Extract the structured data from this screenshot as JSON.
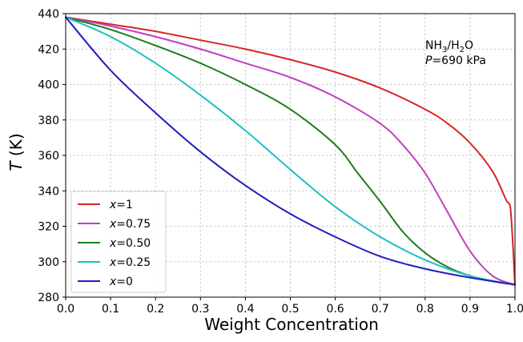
{
  "chart_data": {
    "type": "line",
    "xlabel": "Weight Concentration",
    "ylabel_var": "T",
    "ylabel_unit": " (K)",
    "xlim": [
      0.0,
      1.0
    ],
    "ylim": [
      280,
      440
    ],
    "x_ticks": [
      0.0,
      0.1,
      0.2,
      0.3,
      0.4,
      0.5,
      0.6,
      0.7,
      0.8,
      0.9,
      1.0
    ],
    "x_tick_labels": [
      "0.0",
      "0.1",
      "0.2",
      "0.3",
      "0.4",
      "0.5",
      "0.6",
      "0.7",
      "0.8",
      "0.9",
      "1.0"
    ],
    "y_ticks": [
      280,
      300,
      320,
      340,
      360,
      380,
      400,
      420,
      440
    ],
    "y_tick_labels": [
      "280",
      "300",
      "320",
      "340",
      "360",
      "380",
      "400",
      "420",
      "440"
    ],
    "grid": true,
    "legend_position": "lower-left",
    "annotation": {
      "line1_a": "NH",
      "line1_sub1": "3",
      "line1_b": "/H",
      "line1_sub2": "2",
      "line1_c": "O",
      "line2_var": "P",
      "line2_rest": "=690 kPa"
    },
    "series": [
      {
        "name_var": "x",
        "name_rest": "=1",
        "color": "#d62728",
        "x": [
          0.0,
          0.1,
          0.2,
          0.3,
          0.4,
          0.5,
          0.6,
          0.7,
          0.8,
          0.85,
          0.9,
          0.95,
          0.98,
          0.99,
          1.0
        ],
        "y": [
          438,
          434,
          430,
          425,
          420,
          414,
          407,
          398,
          386,
          378,
          367,
          351,
          335,
          330,
          287
        ]
      },
      {
        "name_var": "x",
        "name_rest": "=0.75",
        "color": "#bf3fbf",
        "x": [
          0.0,
          0.1,
          0.2,
          0.3,
          0.4,
          0.5,
          0.6,
          0.7,
          0.75,
          0.8,
          0.85,
          0.9,
          0.95,
          1.0
        ],
        "y": [
          438,
          433,
          427,
          420,
          412,
          404,
          393,
          378,
          366,
          350,
          328,
          306,
          292,
          287
        ]
      },
      {
        "name_var": "x",
        "name_rest": "=0.50",
        "color": "#1e7d1e",
        "x": [
          0.0,
          0.1,
          0.2,
          0.3,
          0.4,
          0.5,
          0.6,
          0.65,
          0.7,
          0.75,
          0.8,
          0.85,
          0.9,
          0.95,
          1.0
        ],
        "y": [
          438,
          431,
          422,
          412,
          400,
          386,
          366,
          350,
          334,
          317,
          305,
          297,
          292,
          289,
          287
        ]
      },
      {
        "name_var": "x",
        "name_rest": "=0.25",
        "color": "#20bfbf",
        "x": [
          0.0,
          0.1,
          0.2,
          0.3,
          0.4,
          0.5,
          0.6,
          0.7,
          0.8,
          0.9,
          1.0
        ],
        "y": [
          438,
          427,
          412,
          394,
          374,
          352,
          331,
          314,
          301,
          292,
          287
        ]
      },
      {
        "name_var": "x",
        "name_rest": "=0",
        "color": "#1f1fbf",
        "x": [
          0.0,
          0.1,
          0.2,
          0.3,
          0.4,
          0.5,
          0.6,
          0.7,
          0.8,
          0.9,
          1.0
        ],
        "y": [
          438,
          408,
          384,
          362,
          343,
          327,
          314,
          303,
          296,
          291,
          287
        ]
      }
    ]
  }
}
